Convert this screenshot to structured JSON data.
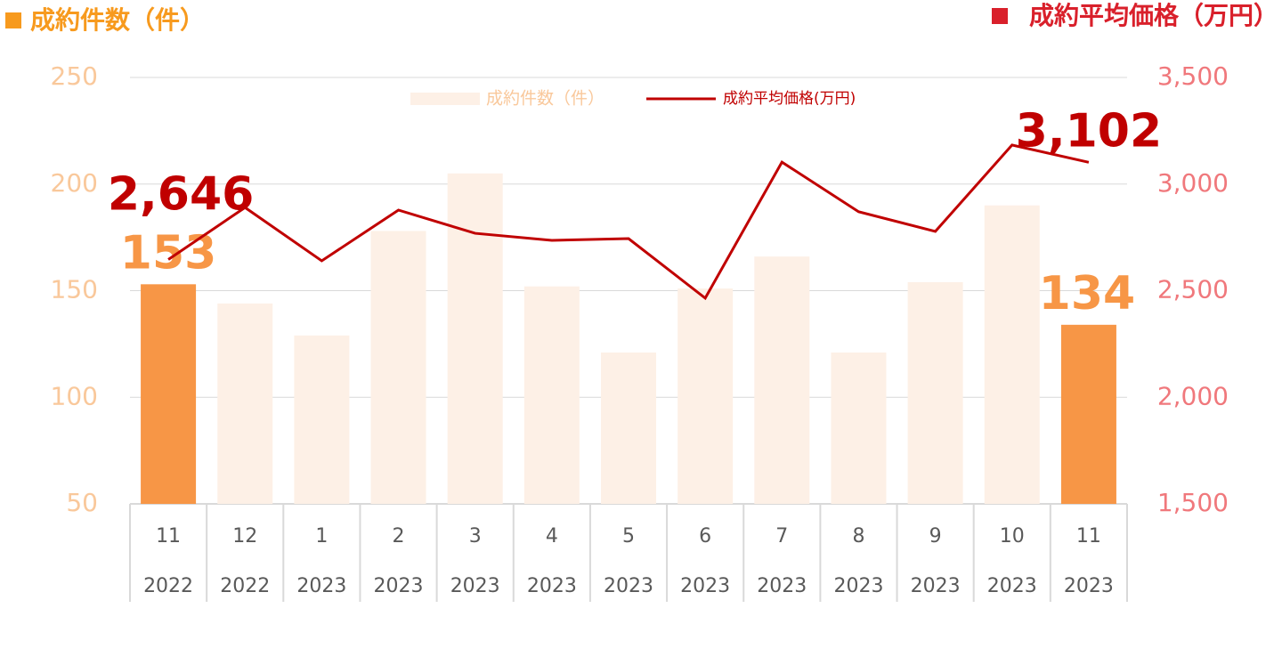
{
  "chart_data": {
    "type": "bar_line",
    "y_label": "成約件数（件）",
    "y2_label": "成約平均価格（万円）",
    "categories": [
      "11",
      "12",
      "1",
      "2",
      "3",
      "4",
      "5",
      "6",
      "7",
      "8",
      "9",
      "10",
      "11"
    ],
    "category_groups": [
      "2022",
      "2022",
      "2023",
      "2023",
      "2023",
      "2023",
      "2023",
      "2023",
      "2023",
      "2023",
      "2023",
      "2023",
      "2023"
    ],
    "series": [
      {
        "name": "成約件数（件）",
        "type": "bar",
        "color": "#FDF0E6",
        "highlight_color": "#F79646",
        "values": [
          153,
          144,
          129,
          178,
          205,
          152,
          121,
          151,
          166,
          121,
          154,
          190,
          134
        ],
        "value_labels": [
          "153",
          null,
          null,
          null,
          null,
          null,
          null,
          null,
          null,
          null,
          null,
          null,
          "134"
        ]
      },
      {
        "name": "成約平均価格(万円)",
        "type": "line",
        "axis": "y2",
        "color": "#C00000",
        "values": [
          2646,
          2890,
          2640,
          2878,
          2769,
          2736,
          2744,
          2465,
          3103,
          2870,
          2778,
          3183,
          3102
        ],
        "value_labels": [
          "2,646",
          null,
          null,
          null,
          null,
          null,
          null,
          null,
          null,
          null,
          null,
          null,
          "3,102"
        ]
      }
    ],
    "ylim": [
      50,
      250
    ],
    "yticks": [
      50,
      100,
      150,
      200,
      250
    ],
    "y2lim": [
      1500,
      3500
    ],
    "y2ticks": [
      {
        "value": 1500,
        "label": "1,500"
      },
      {
        "value": 2000,
        "label": "2,000"
      },
      {
        "value": 2500,
        "label": "2,500"
      },
      {
        "value": 3000,
        "label": "3,000"
      },
      {
        "value": 3500,
        "label": "3,500"
      }
    ],
    "grid": true
  }
}
